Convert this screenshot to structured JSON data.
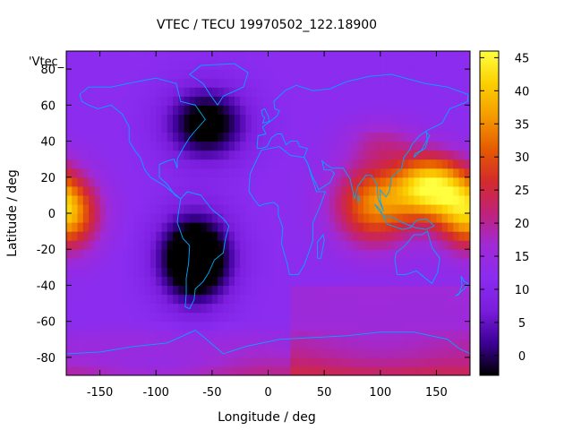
{
  "chart_data": {
    "type": "heatmap",
    "title": "VTEC / TECU 19970502_122.18900",
    "xlabel": "Longitude / deg",
    "ylabel": "Latitude / deg",
    "key_label": "'Vtec_",
    "xlim": [
      -180,
      180
    ],
    "ylim": [
      -90,
      90
    ],
    "x_ticks": [
      -150,
      -100,
      -50,
      0,
      50,
      100,
      150
    ],
    "y_ticks": [
      -80,
      -60,
      -40,
      -20,
      0,
      20,
      40,
      60,
      80
    ],
    "colorbar": {
      "range": [
        -3,
        46
      ],
      "ticks": [
        0,
        5,
        10,
        15,
        20,
        25,
        30,
        35,
        40,
        45
      ]
    },
    "palette": [
      "#000000",
      "#3c0096",
      "#7a1ddc",
      "#8a2cf0",
      "#a02ad6",
      "#c0227a",
      "#d42b2b",
      "#e65c00",
      "#f59b00",
      "#fbd000",
      "#ffff40"
    ],
    "coastline_color": "#00a8ff",
    "field": {
      "lon_step": 5,
      "lat_step": 5,
      "regions": [
        {
          "lon": -180,
          "lat": 0,
          "value": 38,
          "rlon": 35,
          "rlat": 25
        },
        {
          "lon": 145,
          "lat": 15,
          "value": 42,
          "rlon": 40,
          "rlat": 22
        },
        {
          "lon": 95,
          "lat": 5,
          "value": 34,
          "rlon": 45,
          "rlat": 28
        },
        {
          "lon": 100,
          "lat": 40,
          "value": 18,
          "rlon": 40,
          "rlat": 15
        },
        {
          "lon": -65,
          "lat": -25,
          "value": -14,
          "rlon": 40,
          "rlat": 30
        },
        {
          "lon": -55,
          "lat": 50,
          "value": -6,
          "rlon": 45,
          "rlat": 25
        },
        {
          "lon": 100,
          "lat": -80,
          "value": 8,
          "rlon": 100,
          "rlat": 18
        },
        {
          "lon": -100,
          "lat": -85,
          "value": 6,
          "rlon": 90,
          "rlat": 12
        }
      ],
      "base": 12,
      "south_gradient": 0.12
    }
  }
}
